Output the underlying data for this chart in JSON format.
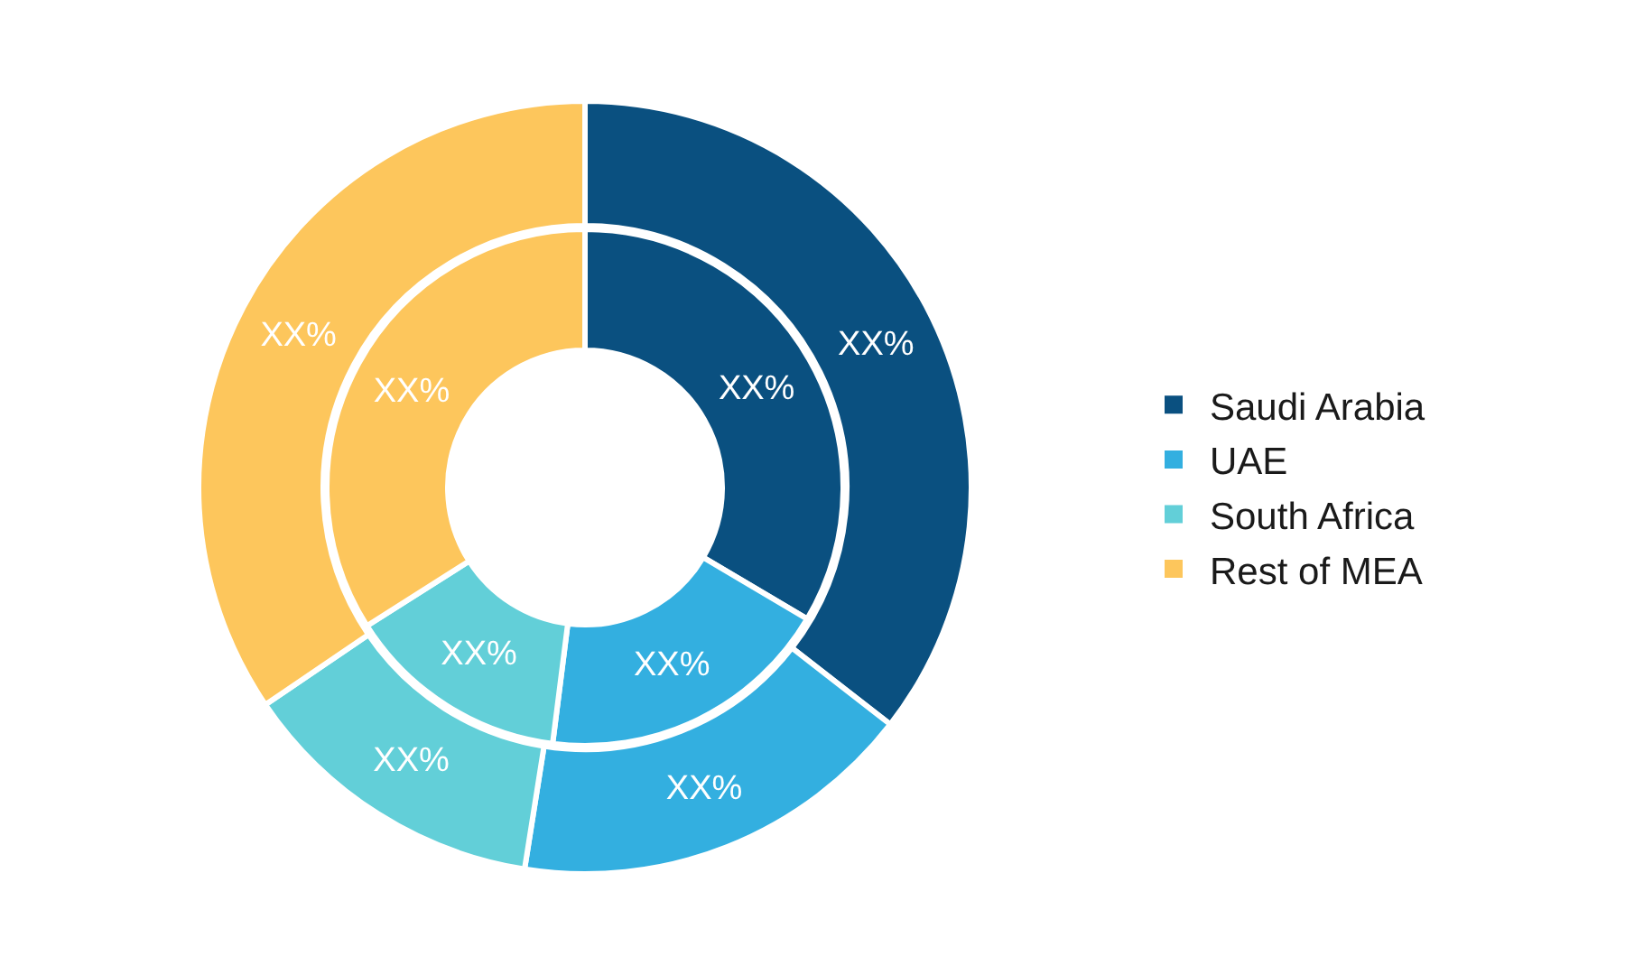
{
  "chart_data": {
    "type": "donut",
    "categories": [
      "Saudi Arabia",
      "UAE",
      "South Africa",
      "Rest of MEA"
    ],
    "colors": [
      "#0a5080",
      "#33afe0",
      "#62cfd8",
      "#fdc65c"
    ],
    "series": [
      {
        "values": [
          35.5,
          17,
          13,
          34.5
        ],
        "value_labels": [
          "XX%",
          "XX%",
          "XX%",
          "XX%"
        ]
      },
      {
        "values": [
          33.5,
          18.5,
          14,
          34
        ],
        "value_labels": [
          "XX%",
          "XX%",
          "XX%",
          "XX%"
        ]
      }
    ],
    "legend": "right"
  }
}
